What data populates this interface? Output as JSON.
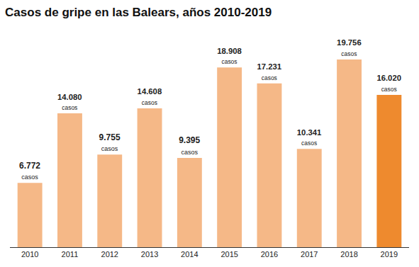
{
  "chart_data": {
    "type": "bar",
    "title": "Casos de gripe en las Balears, años 2010-2019",
    "categories": [
      "2010",
      "2011",
      "2012",
      "2013",
      "2014",
      "2015",
      "2016",
      "2017",
      "2018",
      "2019"
    ],
    "values": [
      6772,
      14080,
      9755,
      14608,
      9395,
      18908,
      17231,
      10341,
      19756,
      16020
    ],
    "value_labels": [
      "6.772\ncasos",
      "14.080\ncasos",
      "9.755\ncasos",
      "14.608\ncasos",
      "9.395\ncasos",
      "18.908\ncasos",
      "17.231\ncasos",
      "10.341\ncasos",
      "19.756\ncasos",
      "16.020\ncasos"
    ],
    "colors": [
      "#f5b887",
      "#f5b887",
      "#f5b887",
      "#f5b887",
      "#f5b887",
      "#f5b887",
      "#f5b887",
      "#f5b887",
      "#f5b887",
      "#ee8a2e"
    ],
    "data_labels": true,
    "tick_labels": "x",
    "grid": false
  }
}
